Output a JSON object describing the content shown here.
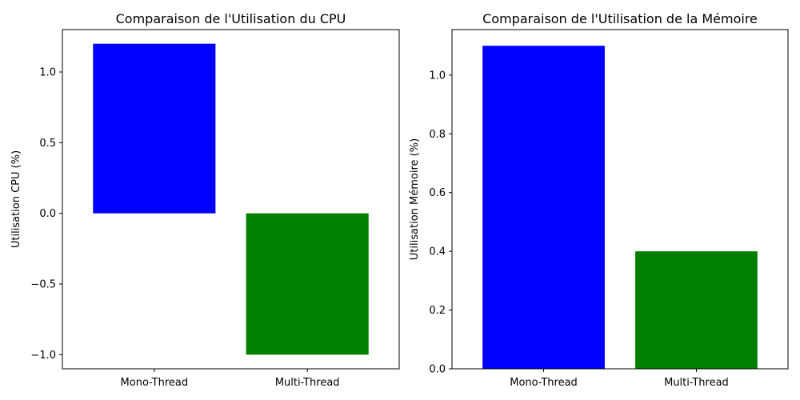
{
  "chart_data": [
    {
      "type": "bar",
      "title": "Comparaison de l'Utilisation du CPU",
      "xlabel": "",
      "ylabel": "Utilisation CPU (%)",
      "categories": [
        "Mono-Thread",
        "Multi-Thread"
      ],
      "values": [
        1.2,
        -1.0
      ],
      "colors": [
        "#0000ff",
        "#008000"
      ],
      "ylim": [
        -1.1,
        1.3
      ],
      "yticks": [
        -1.0,
        -0.5,
        0.0,
        0.5,
        1.0
      ],
      "ytick_labels": [
        "−1.0",
        "−0.5",
        "0.0",
        "0.5",
        "1.0"
      ],
      "grid": false
    },
    {
      "type": "bar",
      "title": "Comparaison de l'Utilisation de la Mémoire",
      "xlabel": "",
      "ylabel": "Utilisation Mémoire (%)",
      "categories": [
        "Mono-Thread",
        "Multi-Thread"
      ],
      "values": [
        1.1,
        0.4
      ],
      "colors": [
        "#0000ff",
        "#008000"
      ],
      "ylim": [
        0.0,
        1.155
      ],
      "yticks": [
        0.0,
        0.2,
        0.4,
        0.6,
        0.8,
        1.0
      ],
      "ytick_labels": [
        "0.0",
        "0.2",
        "0.4",
        "0.6",
        "0.8",
        "1.0"
      ],
      "grid": false
    }
  ]
}
